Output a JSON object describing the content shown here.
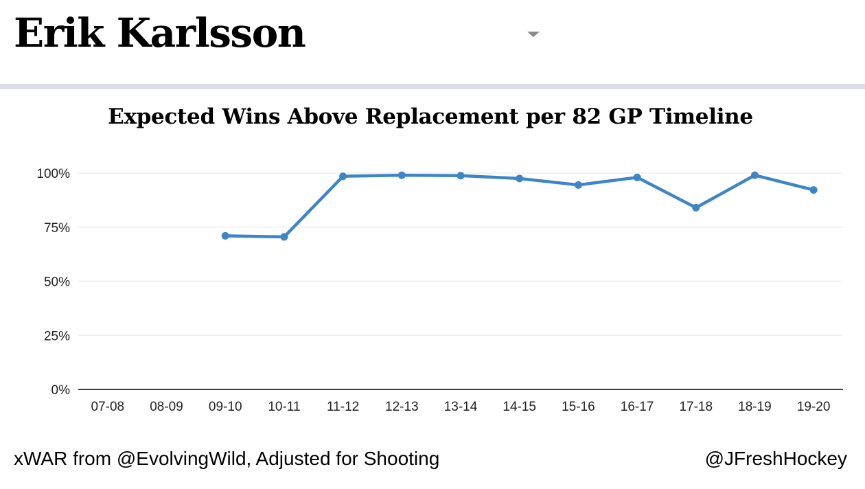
{
  "header": {
    "player_name": "Erik Karlsson"
  },
  "footer": {
    "source_text": "xWAR from @EvolvingWild, Adjusted for Shooting",
    "credit_text": "@JFreshHockey"
  },
  "colors": {
    "line": "#3d85c6",
    "grid": "#eeeeee",
    "axis": "#000000",
    "divider": "#dcdde6"
  },
  "chart_data": {
    "type": "line",
    "title": "Expected Wins Above Replacement per 82 GP Timeline",
    "xlabel": "",
    "ylabel": "",
    "categories": [
      "07-08",
      "08-09",
      "09-10",
      "10-11",
      "11-12",
      "12-13",
      "13-14",
      "14-15",
      "15-16",
      "16-17",
      "17-18",
      "18-19",
      "19-20"
    ],
    "series": [
      {
        "values": [
          null,
          null,
          71,
          70.5,
          98.5,
          99,
          98.8,
          97.5,
          94.5,
          98,
          84,
          99,
          92.2
        ]
      }
    ],
    "yticks": [
      0,
      25,
      50,
      75,
      100
    ],
    "ytick_labels": [
      "0%",
      "25%",
      "50%",
      "75%",
      "100%"
    ],
    "ylim": [
      0,
      100
    ],
    "grid": true,
    "legend": "none"
  }
}
